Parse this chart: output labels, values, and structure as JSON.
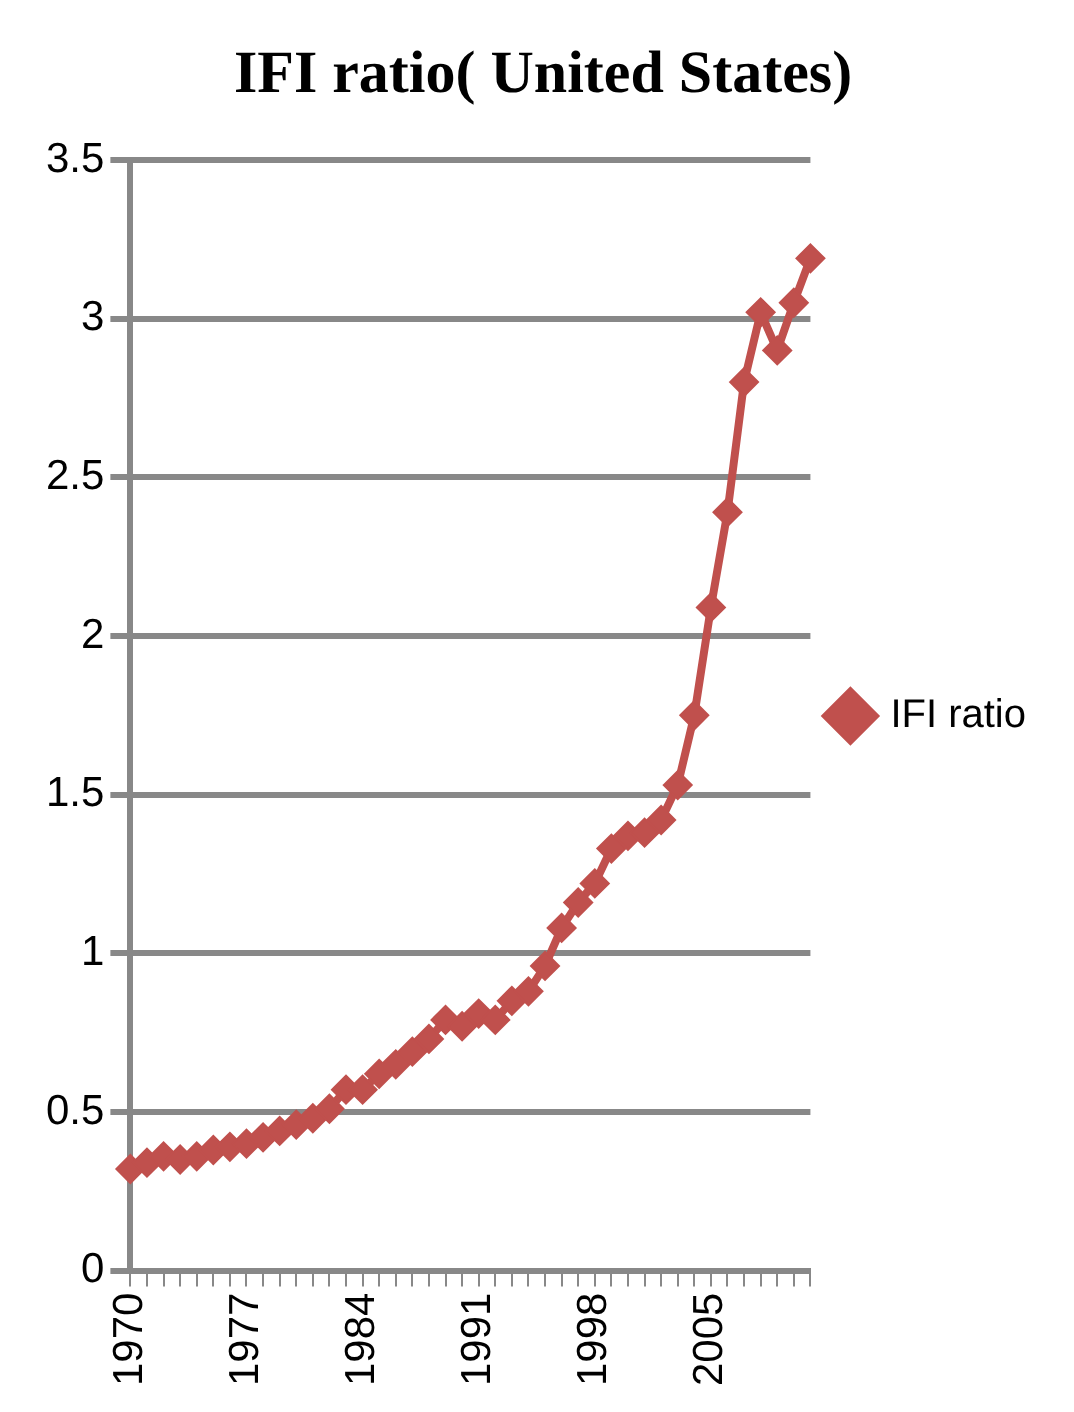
{
  "chart_data": {
    "type": "line",
    "title": "IFI ratio( United States)",
    "categories": [
      "1970",
      null,
      null,
      null,
      null,
      null,
      null,
      "1977",
      null,
      null,
      null,
      null,
      null,
      null,
      "1984",
      null,
      null,
      null,
      null,
      null,
      null,
      "1991",
      null,
      null,
      null,
      null,
      null,
      null,
      "1998",
      null,
      null,
      null,
      null,
      null,
      null,
      "2005",
      null,
      null,
      null,
      null,
      null,
      null
    ],
    "series": [
      {
        "name": "IFI ratio",
        "color": "#c0504d",
        "values": [
          0.32,
          0.34,
          0.36,
          0.35,
          0.36,
          0.38,
          0.39,
          0.4,
          0.42,
          0.44,
          0.46,
          0.48,
          0.51,
          0.57,
          0.57,
          0.62,
          0.65,
          0.69,
          0.73,
          0.79,
          0.77,
          0.81,
          0.79,
          0.85,
          0.88,
          0.96,
          1.08,
          1.16,
          1.22,
          1.33,
          1.37,
          1.38,
          1.42,
          1.53,
          1.75,
          2.09,
          2.39,
          2.8,
          3.02,
          2.9,
          3.05,
          3.19
        ]
      }
    ],
    "ylim": [
      0,
      3.5
    ],
    "yticks": [
      0,
      0.5,
      1,
      1.5,
      2,
      2.5,
      3,
      3.5
    ],
    "grid": "y",
    "legend": "right",
    "marker": "diamond",
    "line_style": "solid"
  }
}
